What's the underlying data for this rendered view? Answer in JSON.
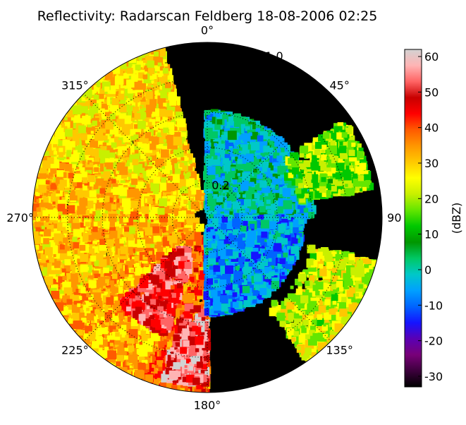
{
  "chart_data": {
    "type": "heatmap",
    "projection": "polar",
    "title": "Reflectivity: Radarscan Feldberg 18-08-2006 02:25",
    "angle_direction": "clockwise",
    "zero_location": "N",
    "angle_ticks": [
      {
        "angle": 0,
        "label": "0°"
      },
      {
        "angle": 45,
        "label": "45°"
      },
      {
        "angle": 90,
        "label": "90"
      },
      {
        "angle": 135,
        "label": "135°"
      },
      {
        "angle": 180,
        "label": "180°"
      },
      {
        "angle": 225,
        "label": "225°"
      },
      {
        "angle": 270,
        "label": "270°"
      },
      {
        "angle": 315,
        "label": "315°"
      }
    ],
    "radial_ticks": [
      {
        "value": 0.2,
        "label": "0.2"
      },
      {
        "value": 0.4,
        "label": ""
      },
      {
        "value": 0.6,
        "label": ""
      },
      {
        "value": 0.8,
        "label": ""
      },
      {
        "value": 1.0,
        "label": "1.0"
      }
    ],
    "rlim": [
      0,
      1.0
    ],
    "grid": true,
    "colorbar": {
      "label": "(dBZ)",
      "vmin": -33,
      "vmax": 62,
      "ticks": [
        -30,
        -20,
        -10,
        0,
        10,
        20,
        30,
        40,
        50,
        60
      ],
      "colors": [
        "#000000",
        "#3c003c",
        "#780078",
        "#5a00b4",
        "#1414ff",
        "#0064ff",
        "#00a0ff",
        "#00c8c8",
        "#00c864",
        "#009600",
        "#00c800",
        "#64e600",
        "#c8f000",
        "#ffff00",
        "#ffc800",
        "#ff9600",
        "#ff5a00",
        "#ff0000",
        "#c80000",
        "#ff6464",
        "#ffb4b4",
        "#d2d2d2"
      ]
    },
    "echoes": [
      {
        "az": [
          290,
          345
        ],
        "r": [
          0.05,
          1.0
        ],
        "dbz": 28
      },
      {
        "az": [
          240,
          290
        ],
        "r": [
          0.05,
          1.0
        ],
        "dbz": 30
      },
      {
        "az": [
          200,
          240
        ],
        "r": [
          0.05,
          1.0
        ],
        "dbz": 32
      },
      {
        "az": [
          180,
          200
        ],
        "r": [
          0.1,
          1.0
        ],
        "dbz": 38
      },
      {
        "az": [
          200,
          225
        ],
        "r": [
          0.2,
          0.7
        ],
        "dbz": 48
      },
      {
        "az": [
          180,
          195
        ],
        "r": [
          0.5,
          0.95
        ],
        "dbz": 52
      },
      {
        "az": [
          0,
          90
        ],
        "r": [
          0.02,
          0.6
        ],
        "dbz": 0
      },
      {
        "az": [
          90,
          180
        ],
        "r": [
          0.02,
          0.55
        ],
        "dbz": -5
      },
      {
        "az": [
          55,
          80
        ],
        "r": [
          0.5,
          0.95
        ],
        "dbz": 18
      },
      {
        "az": [
          105,
          145
        ],
        "r": [
          0.6,
          1.0
        ],
        "dbz": 22
      }
    ]
  }
}
